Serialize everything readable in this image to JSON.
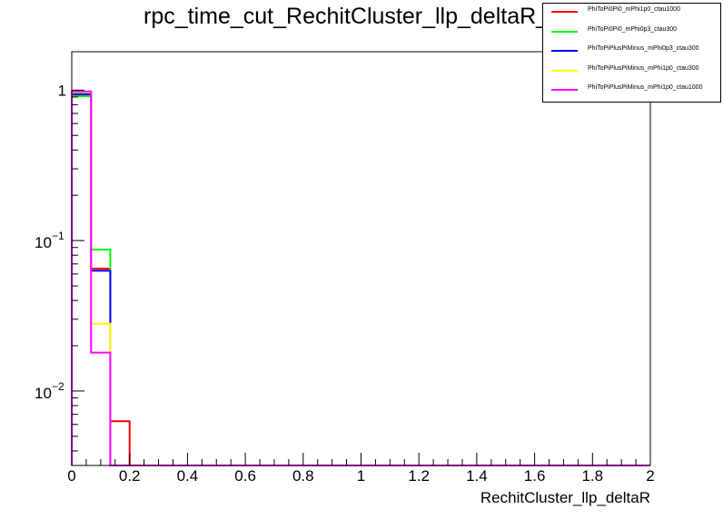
{
  "chart_data": {
    "type": "histogram",
    "title": "rpc_time_cut_RechitCluster_llp_deltaR_0",
    "xlabel": "RechitCluster_llp_deltaR",
    "ylabel": "",
    "xlim": [
      0,
      2
    ],
    "ylim_log": [
      0.0032,
      1.8
    ],
    "log_y": true,
    "bin_edges": [
      0,
      0.0667,
      0.1333,
      0.2
    ],
    "x_ticks": [
      "0",
      "0.2",
      "0.4",
      "0.6",
      "0.8",
      "1",
      "1.2",
      "1.4",
      "1.6",
      "1.8",
      "2"
    ],
    "y_ticks": [
      {
        "base": "10",
        "exp": "",
        "value": 1,
        "label": "1"
      },
      {
        "base": "10",
        "exp": "−1",
        "value": 0.1,
        "label": "10"
      },
      {
        "base": "10",
        "exp": "−2",
        "value": 0.01,
        "label": "10"
      }
    ],
    "legend_position": "top-right",
    "series": [
      {
        "name": "PhiToPi0Pi0_mPhi1p0_ctau1000",
        "color": "#ff0000",
        "values": [
          0.93,
          0.065,
          0.0063
        ]
      },
      {
        "name": "PhiToPi0Pi0_mPhi0p3_ctau300",
        "color": "#00ff00",
        "values": [
          0.91,
          0.087,
          0
        ]
      },
      {
        "name": "PhiToPiPlusPiMinus_mPhi0p3_ctau300",
        "color": "#0000ff",
        "values": [
          0.94,
          0.063,
          0
        ]
      },
      {
        "name": "PhiToPiPlusPiMinus_mPhi1p0_ctau300",
        "color": "#ffff00",
        "values": [
          0.97,
          0.028,
          0
        ]
      },
      {
        "name": "PhiToPiPlusPiMinus_mPhi1p0_ctau1000",
        "color": "#ff00ff",
        "values": [
          0.98,
          0.018,
          0
        ]
      }
    ]
  }
}
